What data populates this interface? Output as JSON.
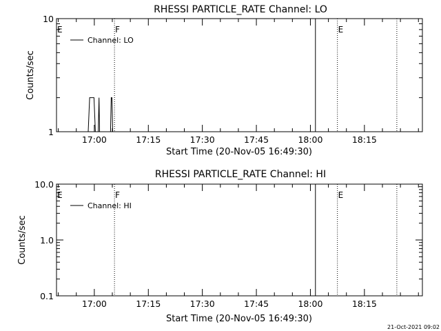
{
  "chart_data": [
    {
      "type": "line",
      "title": "RHESSI PARTICLE_RATE Channel: LO",
      "ylabel": "Counts/sec",
      "xlabel": "Start Time (20-Nov-05 16:49:30)",
      "yscale": "log",
      "ylim": [
        1,
        10
      ],
      "y_tick_labels": [
        "1",
        "10"
      ],
      "x_tick_labels": [
        "17:00",
        "17:15",
        "17:30",
        "17:45",
        "18:00",
        "18:15"
      ],
      "x_ticks_min": [
        10.5,
        25.5,
        40.5,
        55.5,
        70.5,
        85.5
      ],
      "xlim_min": [
        0,
        101.6
      ],
      "series": [
        {
          "name": "Channel: LO",
          "x_min": [
            8.8,
            9.2,
            9.6,
            10.4,
            10.8,
            11.6,
            11.8,
            11.95,
            12.1,
            15.0,
            15.2,
            15.4,
            15.6,
            15.8
          ],
          "y": [
            1,
            2,
            2,
            2,
            1,
            1,
            2,
            1,
            1,
            1,
            2,
            2,
            1,
            1
          ]
        }
      ],
      "markers": [
        {
          "label": "E",
          "x_min": 0,
          "style": "dotted"
        },
        {
          "label": "F",
          "x_min": 16.1,
          "style": "dotted"
        },
        {
          "label": "",
          "x_min": 71.9,
          "style": "solid"
        },
        {
          "label": "E",
          "x_min": 78.0,
          "style": "dotted"
        },
        {
          "label": "",
          "x_min": 94.5,
          "style": "dotted"
        }
      ]
    },
    {
      "type": "line",
      "title": "RHESSI PARTICLE_RATE Channel: HI",
      "ylabel": "Counts/sec",
      "xlabel": "Start Time (20-Nov-05 16:49:30)",
      "yscale": "log",
      "ylim": [
        0.1,
        10
      ],
      "y_tick_labels": [
        "0.1",
        "1.0",
        "10.0"
      ],
      "x_tick_labels": [
        "17:00",
        "17:15",
        "17:30",
        "17:45",
        "18:00",
        "18:15"
      ],
      "x_ticks_min": [
        10.5,
        25.5,
        40.5,
        55.5,
        70.5,
        85.5
      ],
      "xlim_min": [
        0,
        101.6
      ],
      "series": [
        {
          "name": "Channel: HI",
          "x_min": [],
          "y": []
        }
      ],
      "markers": [
        {
          "label": "E",
          "x_min": 0,
          "style": "dotted"
        },
        {
          "label": "F",
          "x_min": 16.1,
          "style": "dotted"
        },
        {
          "label": "",
          "x_min": 71.9,
          "style": "solid"
        },
        {
          "label": "E",
          "x_min": 78.0,
          "style": "dotted"
        },
        {
          "label": "",
          "x_min": 94.5,
          "style": "dotted"
        }
      ]
    }
  ],
  "footer_stamp": "21-Oct-2021 09:02"
}
